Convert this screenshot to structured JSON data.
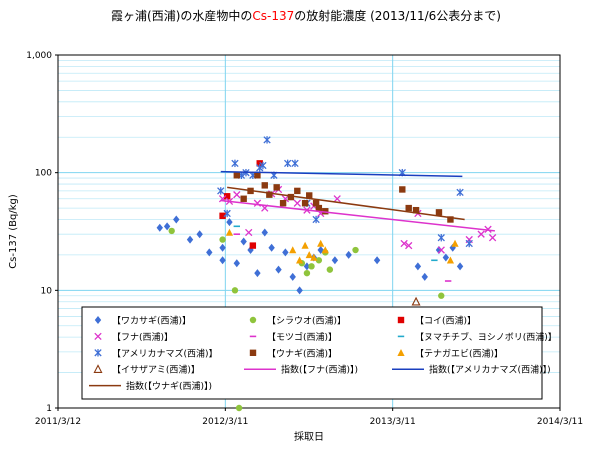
{
  "chart_data": {
    "type": "scatter",
    "title_parts": [
      {
        "text": "霞ヶ浦(西浦)の水産物中の",
        "color": "#000000"
      },
      {
        "text": "Cs-137",
        "color": "#ff0000"
      },
      {
        "text": "の放射能濃度 (2013/11/6公表分まで)",
        "color": "#000000"
      }
    ],
    "xlabel": "採取日",
    "ylabel": "Cs-137 (Bq/kg)",
    "yscale": "log",
    "ylim": [
      1,
      1000
    ],
    "xlim": [
      "2011-03-12",
      "2014-03-11"
    ],
    "x_ticks": [
      "2011/3/12",
      "2012/3/11",
      "2013/3/11",
      "2014/3/11"
    ],
    "y_ticks": [
      "1",
      "10",
      "100",
      "1,000"
    ],
    "grid": true,
    "legend_position": "bottom-inside",
    "colors": {
      "blue_diamond": "#3f6fd6",
      "green_circle": "#8fc43c",
      "red_square": "#e00000",
      "magenta_x": "#dd33cc",
      "magenta_dash": "#dd33cc",
      "cyan_dash": "#22aacc",
      "blue_star": "#3f6fd6",
      "brown_square": "#8b3a10",
      "orange_triangle": "#f4a000",
      "brown_triangle": "#8b3a10"
    },
    "series": [
      {
        "name": "【ワカサギ(西浦)】",
        "marker": "diamond",
        "color": "#3f6fd6",
        "points": [
          [
            "2011-10-20",
            34
          ],
          [
            "2011-11-05",
            35
          ],
          [
            "2011-11-25",
            40
          ],
          [
            "2011-12-25",
            27
          ],
          [
            "2012-01-15",
            30
          ],
          [
            "2012-02-05",
            21
          ],
          [
            "2012-03-05",
            23
          ],
          [
            "2012-03-05",
            18
          ],
          [
            "2012-03-20",
            38
          ],
          [
            "2012-04-05",
            17
          ],
          [
            "2012-04-20",
            26
          ],
          [
            "2012-05-05",
            22
          ],
          [
            "2012-05-20",
            14
          ],
          [
            "2012-06-05",
            31
          ],
          [
            "2012-06-20",
            23
          ],
          [
            "2012-07-05",
            15
          ],
          [
            "2012-07-20",
            21
          ],
          [
            "2012-08-05",
            13
          ],
          [
            "2012-08-20",
            10
          ],
          [
            "2012-09-05",
            16
          ],
          [
            "2012-09-20",
            19
          ],
          [
            "2012-10-05",
            22
          ],
          [
            "2012-11-05",
            18
          ],
          [
            "2012-12-05",
            20
          ],
          [
            "2013-02-05",
            18
          ],
          [
            "2013-05-05",
            16
          ],
          [
            "2013-05-20",
            13
          ],
          [
            "2013-06-20",
            22
          ],
          [
            "2013-07-05",
            19
          ],
          [
            "2013-07-20",
            23
          ],
          [
            "2013-08-05",
            16
          ]
        ]
      },
      {
        "name": "【シラウオ(西浦)】",
        "marker": "circle",
        "color": "#8fc43c",
        "points": [
          [
            "2011-11-15",
            32
          ],
          [
            "2012-03-05",
            27
          ],
          [
            "2012-04-01",
            10
          ],
          [
            "2012-04-10",
            1
          ],
          [
            "2012-08-25",
            17
          ],
          [
            "2012-09-05",
            14
          ],
          [
            "2012-09-15",
            16
          ],
          [
            "2012-10-01",
            18
          ],
          [
            "2012-10-15",
            21
          ],
          [
            "2012-10-25",
            15
          ],
          [
            "2012-12-20",
            22
          ],
          [
            "2013-06-25",
            9
          ]
        ]
      },
      {
        "name": "【コイ(西浦)】",
        "marker": "square",
        "color": "#e00000",
        "points": [
          [
            "2012-03-05",
            43
          ],
          [
            "2012-03-15",
            63
          ],
          [
            "2012-05-10",
            24
          ],
          [
            "2012-05-25",
            120
          ]
        ]
      },
      {
        "name": "【フナ(西浦)】",
        "marker": "x",
        "color": "#dd33cc",
        "points": [
          [
            "2012-03-05",
            60
          ],
          [
            "2012-03-20",
            57
          ],
          [
            "2012-04-05",
            65
          ],
          [
            "2012-05-01",
            31
          ],
          [
            "2012-05-20",
            55
          ],
          [
            "2012-06-05",
            50
          ],
          [
            "2012-06-20",
            66
          ],
          [
            "2012-07-05",
            72
          ],
          [
            "2012-07-20",
            60
          ],
          [
            "2012-08-15",
            55
          ],
          [
            "2012-09-05",
            48
          ],
          [
            "2012-09-20",
            52
          ],
          [
            "2012-10-05",
            45
          ],
          [
            "2012-11-10",
            60
          ],
          [
            "2013-04-05",
            25
          ],
          [
            "2013-04-15",
            24
          ],
          [
            "2013-05-05",
            45
          ],
          [
            "2013-06-25",
            22
          ],
          [
            "2013-08-25",
            27
          ],
          [
            "2013-09-20",
            30
          ],
          [
            "2013-10-05",
            33
          ],
          [
            "2013-10-15",
            28
          ]
        ]
      },
      {
        "name": "【モツゴ(西浦)】",
        "marker": "dash",
        "color": "#dd33cc",
        "points": [
          [
            "2012-04-05",
            30
          ],
          [
            "2013-07-10",
            12
          ]
        ]
      },
      {
        "name": "【ヌマチチブ、ヨシノボリ(西浦)】",
        "marker": "dash",
        "color": "#22aacc",
        "points": [
          [
            "2012-04-05",
            35
          ],
          [
            "2013-06-10",
            18
          ]
        ]
      },
      {
        "name": "【アメリカナマズ(西浦)】",
        "marker": "star",
        "color": "#3f6fd6",
        "points": [
          [
            "2012-03-01",
            70
          ],
          [
            "2012-03-15",
            45
          ],
          [
            "2012-04-01",
            120
          ],
          [
            "2012-04-15",
            95
          ],
          [
            "2012-04-25",
            100
          ],
          [
            "2012-05-10",
            95
          ],
          [
            "2012-05-25",
            110
          ],
          [
            "2012-06-01",
            115
          ],
          [
            "2012-06-10",
            190
          ],
          [
            "2012-06-25",
            95
          ],
          [
            "2012-07-25",
            120
          ],
          [
            "2012-08-10",
            120
          ],
          [
            "2012-09-05",
            55
          ],
          [
            "2012-09-25",
            40
          ],
          [
            "2013-04-01",
            100
          ],
          [
            "2013-06-25",
            28
          ],
          [
            "2013-08-05",
            68
          ],
          [
            "2013-08-25",
            25
          ]
        ]
      },
      {
        "name": "【ウナギ(西浦)】",
        "marker": "square",
        "color": "#8b3a10",
        "points": [
          [
            "2012-04-05",
            95
          ],
          [
            "2012-04-20",
            60
          ],
          [
            "2012-05-05",
            70
          ],
          [
            "2012-05-20",
            95
          ],
          [
            "2012-06-05",
            78
          ],
          [
            "2012-06-15",
            65
          ],
          [
            "2012-07-01",
            75
          ],
          [
            "2012-07-15",
            55
          ],
          [
            "2012-08-01",
            62
          ],
          [
            "2012-08-15",
            70
          ],
          [
            "2012-09-01",
            55
          ],
          [
            "2012-09-10",
            64
          ],
          [
            "2012-09-25",
            55
          ],
          [
            "2012-10-01",
            50
          ],
          [
            "2012-10-15",
            47
          ],
          [
            "2013-04-01",
            72
          ],
          [
            "2013-04-15",
            50
          ],
          [
            "2013-05-01",
            48
          ],
          [
            "2013-06-20",
            46
          ],
          [
            "2013-07-15",
            40
          ]
        ]
      },
      {
        "name": "【テナガエビ(西浦)】",
        "marker": "triangle",
        "color": "#f4a000",
        "points": [
          [
            "2012-03-20",
            31
          ],
          [
            "2012-08-05",
            22
          ],
          [
            "2012-08-20",
            18
          ],
          [
            "2012-09-01",
            24
          ],
          [
            "2012-09-10",
            20
          ],
          [
            "2012-09-20",
            19
          ],
          [
            "2012-10-05",
            25
          ],
          [
            "2012-10-15",
            22
          ],
          [
            "2013-07-15",
            18
          ],
          [
            "2013-07-25",
            25
          ]
        ]
      },
      {
        "name": "【イサザアミ(西浦)】",
        "marker": "triangle-open",
        "color": "#8b3a10",
        "points": [
          [
            "2013-05-01",
            8
          ]
        ]
      },
      {
        "name": "指数(【フナ(西浦)】)",
        "marker": "line",
        "color": "#dd33cc",
        "points": [
          [
            "2012-03-01",
            58
          ],
          [
            "2013-10-20",
            32
          ]
        ]
      },
      {
        "name": "指数(【アメリカナマズ(西浦)】)",
        "marker": "line",
        "color": "#1a3fbf",
        "points": [
          [
            "2012-03-01",
            102
          ],
          [
            "2013-08-10",
            93
          ]
        ]
      },
      {
        "name": "指数(【ウナギ(西浦)】)",
        "marker": "line",
        "color": "#8b3a10",
        "points": [
          [
            "2012-03-15",
            75
          ],
          [
            "2013-08-15",
            40
          ]
        ]
      }
    ]
  }
}
